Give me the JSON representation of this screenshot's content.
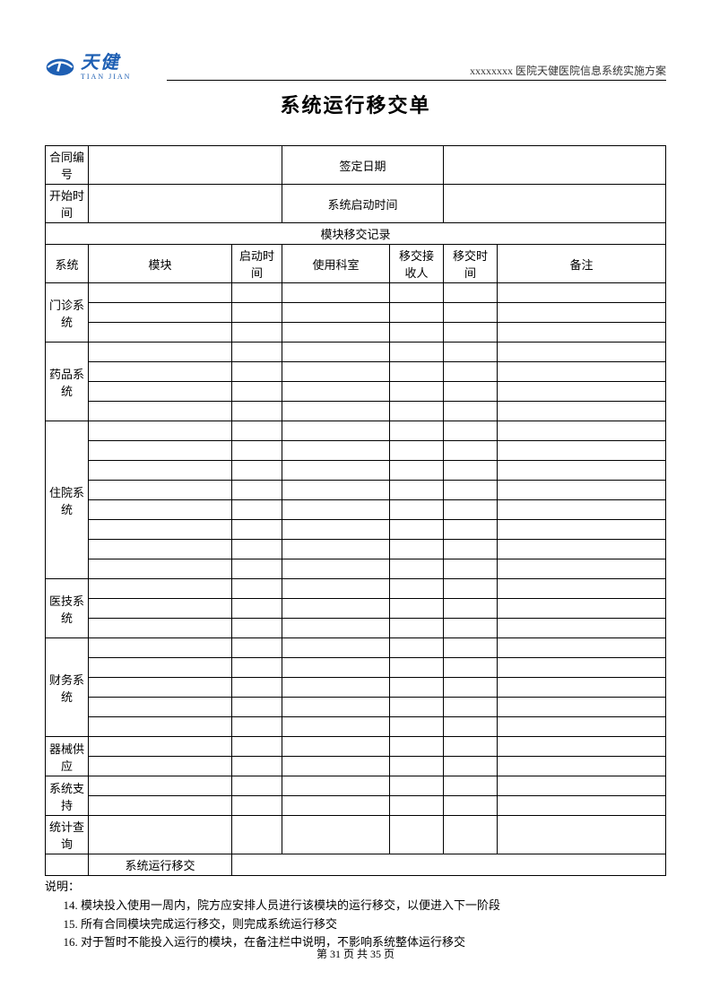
{
  "header": {
    "logo_cn": "天健",
    "logo_en": "TIAN JIAN",
    "logo_color": "#1e5fb3",
    "doc_subtitle": "xxxxxxxx 医院天健医院信息系统实施方案"
  },
  "title": "系统运行移交单",
  "meta_rows": [
    {
      "l_label": "合同编号",
      "l_value": "",
      "r_label": "签定日期",
      "r_value": ""
    },
    {
      "l_label": "开始时间",
      "l_value": "",
      "r_label": "系统启动时间",
      "r_value": ""
    }
  ],
  "section_header": "模块移交记录",
  "columns": {
    "system": "系统",
    "module": "模块",
    "start_time": "启动时间",
    "department": "使用科室",
    "receiver": "移交接收人",
    "handover_time": "移交时间",
    "remark": "备注"
  },
  "groups": [
    {
      "name": "门诊系统",
      "rows": 3
    },
    {
      "name": "药品系统",
      "rows": 4
    },
    {
      "name": "住院系统",
      "rows": 8
    },
    {
      "name": "医技系统",
      "rows": 3
    },
    {
      "name": "财务系统",
      "rows": 5
    },
    {
      "name": "器械供应",
      "rows": 2
    },
    {
      "name": "系统支持",
      "rows": 2
    },
    {
      "name": "统计查询",
      "rows": 1
    }
  ],
  "final_row_label": "系统运行移交",
  "notes": {
    "label": "说明：",
    "start_number": 14,
    "items": [
      "模块投入使用一周内，院方应安排人员进行该模块的运行移交，以便进入下一阶段",
      "所有合同模块完成运行移交，则完成系统运行移交",
      "对于暂时不能投入运行的模块，在备注栏中说明，不影响系统整体运行移交"
    ]
  },
  "footer": {
    "current_page": 31,
    "total_pages": 35,
    "template": "第 {cur} 页 共 {tot} 页"
  }
}
